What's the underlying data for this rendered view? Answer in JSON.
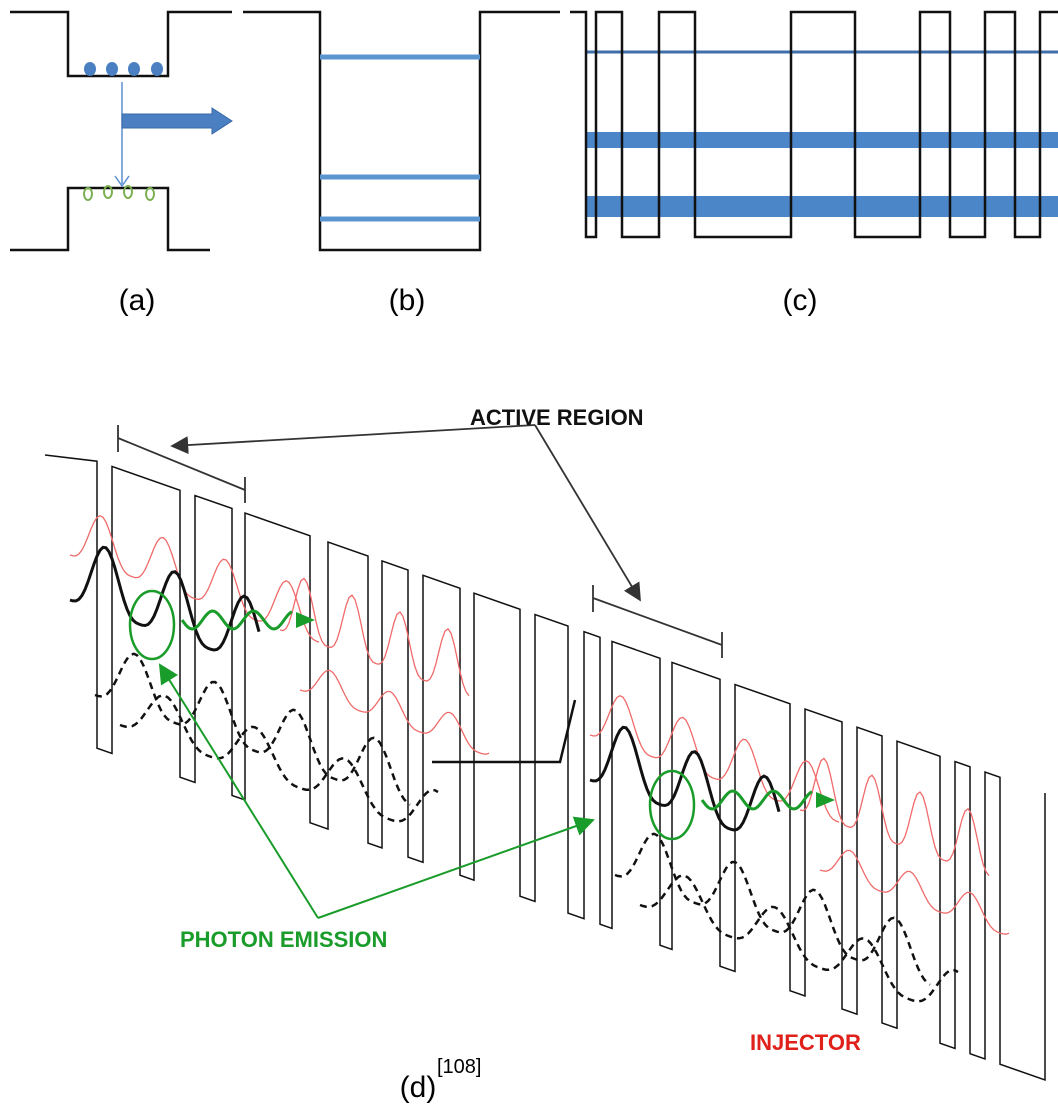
{
  "panels": [
    {
      "label": "(a)"
    },
    {
      "label": "(b)"
    },
    {
      "label": "(c)"
    },
    {
      "label": "(d)",
      "reference": "[108]"
    }
  ],
  "annotations": {
    "active_region": "ACTIVE REGION",
    "photon_emission": "PHOTON EMISSION",
    "injector": "INJECTOR"
  }
}
